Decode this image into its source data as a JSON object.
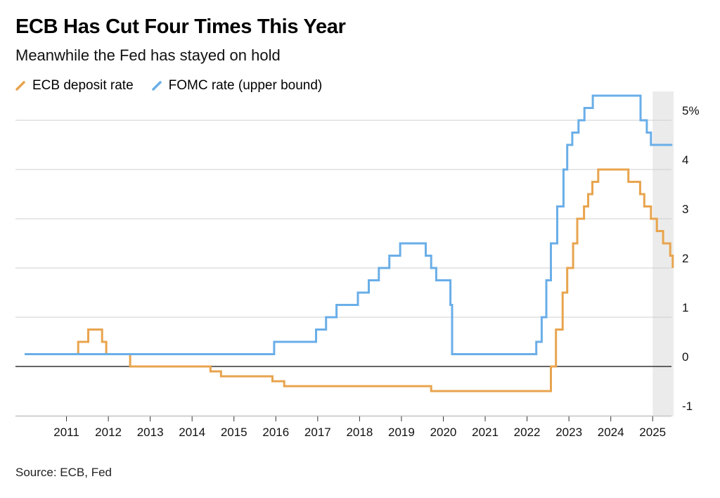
{
  "header": {
    "title": "ECB Has Cut Four Times This Year",
    "subtitle": "Meanwhile the Fed has stayed on hold"
  },
  "footer": {
    "source": "Source: ECB, Fed"
  },
  "colors": {
    "ecb": "#E8A44E",
    "fomc": "#6AAEE8",
    "shade": "#EBEBEB",
    "grid": "#CFCFCF",
    "zero": "#333333"
  },
  "chart_data": {
    "type": "line",
    "title": "ECB Has Cut Four Times This Year",
    "subtitle": "Meanwhile the Fed has stayed on hold",
    "xlabel": "",
    "ylabel": "",
    "xlim": [
      2010.0,
      2025.5
    ],
    "ylim": [
      -1.2,
      5.5
    ],
    "x_ticks": [
      {
        "x": 2011,
        "label": "2011"
      },
      {
        "x": 2012,
        "label": "2012"
      },
      {
        "x": 2013,
        "label": "2013"
      },
      {
        "x": 2014,
        "label": "2014"
      },
      {
        "x": 2015,
        "label": "2015"
      },
      {
        "x": 2016,
        "label": "2016"
      },
      {
        "x": 2017,
        "label": "2017"
      },
      {
        "x": 2018,
        "label": "2018"
      },
      {
        "x": 2019,
        "label": "2019"
      },
      {
        "x": 2020,
        "label": "2020"
      },
      {
        "x": 2021,
        "label": "2021"
      },
      {
        "x": 2022,
        "label": "2022"
      },
      {
        "x": 2023,
        "label": "2023"
      },
      {
        "x": 2024,
        "label": "2024"
      },
      {
        "x": 2025,
        "label": "2025"
      }
    ],
    "y_ticks": [
      {
        "y": 5,
        "label": "5%"
      },
      {
        "y": 4,
        "label": "4"
      },
      {
        "y": 3,
        "label": "3"
      },
      {
        "y": 2,
        "label": "2"
      },
      {
        "y": 1,
        "label": "1"
      },
      {
        "y": 0,
        "label": "0"
      },
      {
        "y": -1,
        "label": "-1"
      }
    ],
    "grid": true,
    "legend_position": "top-left",
    "shaded_region": {
      "x0": 2025.0,
      "x1": 2025.5
    },
    "series": [
      {
        "name": "ECB deposit rate",
        "color": "#E8A44E",
        "step": true,
        "points": [
          [
            2010.0,
            0.25
          ],
          [
            2011.28,
            0.5
          ],
          [
            2011.52,
            0.75
          ],
          [
            2011.85,
            0.5
          ],
          [
            2011.95,
            0.25
          ],
          [
            2012.52,
            0.0
          ],
          [
            2014.44,
            -0.1
          ],
          [
            2014.69,
            -0.2
          ],
          [
            2015.92,
            -0.3
          ],
          [
            2016.2,
            -0.4
          ],
          [
            2019.71,
            -0.5
          ],
          [
            2022.57,
            0.0
          ],
          [
            2022.69,
            0.75
          ],
          [
            2022.85,
            1.5
          ],
          [
            2022.96,
            2.0
          ],
          [
            2023.1,
            2.5
          ],
          [
            2023.2,
            3.0
          ],
          [
            2023.36,
            3.25
          ],
          [
            2023.46,
            3.5
          ],
          [
            2023.56,
            3.75
          ],
          [
            2023.7,
            4.0
          ],
          [
            2024.42,
            3.75
          ],
          [
            2024.7,
            3.5
          ],
          [
            2024.8,
            3.25
          ],
          [
            2024.96,
            3.0
          ],
          [
            2025.1,
            2.75
          ],
          [
            2025.25,
            2.5
          ],
          [
            2025.42,
            2.25
          ],
          [
            2025.48,
            2.0
          ]
        ]
      },
      {
        "name": "FOMC rate (upper bound)",
        "color": "#6AAEE8",
        "step": true,
        "points": [
          [
            2010.0,
            0.25
          ],
          [
            2015.96,
            0.5
          ],
          [
            2016.96,
            0.75
          ],
          [
            2017.2,
            1.0
          ],
          [
            2017.45,
            1.25
          ],
          [
            2017.96,
            1.5
          ],
          [
            2018.22,
            1.75
          ],
          [
            2018.46,
            2.0
          ],
          [
            2018.71,
            2.25
          ],
          [
            2018.97,
            2.5
          ],
          [
            2019.58,
            2.25
          ],
          [
            2019.71,
            2.0
          ],
          [
            2019.83,
            1.75
          ],
          [
            2020.17,
            1.25
          ],
          [
            2020.21,
            0.25
          ],
          [
            2022.22,
            0.5
          ],
          [
            2022.35,
            1.0
          ],
          [
            2022.46,
            1.75
          ],
          [
            2022.57,
            2.5
          ],
          [
            2022.72,
            3.25
          ],
          [
            2022.87,
            4.0
          ],
          [
            2022.96,
            4.5
          ],
          [
            2023.08,
            4.75
          ],
          [
            2023.23,
            5.0
          ],
          [
            2023.37,
            5.25
          ],
          [
            2023.57,
            5.5
          ],
          [
            2024.71,
            5.0
          ],
          [
            2024.86,
            4.75
          ],
          [
            2024.96,
            4.5
          ],
          [
            2025.47,
            4.5
          ]
        ]
      }
    ]
  }
}
